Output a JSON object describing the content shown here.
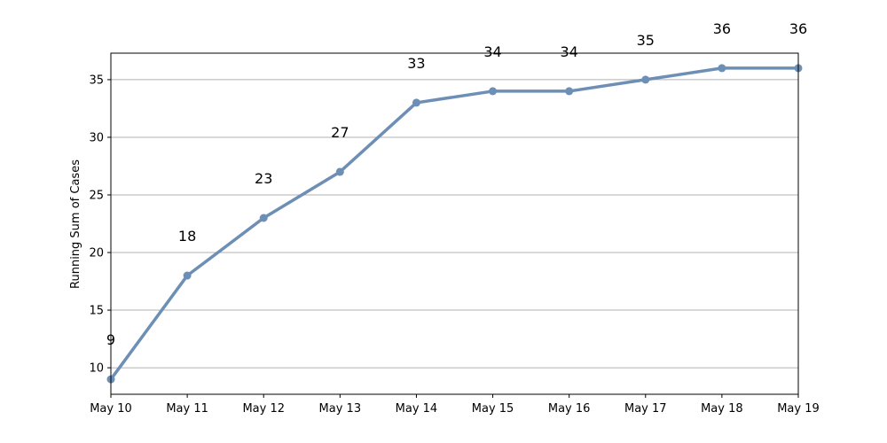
{
  "chart_data": {
    "type": "line",
    "title": "",
    "xlabel": "",
    "ylabel": "Running Sum of Cases",
    "categories": [
      "May 10",
      "May 11",
      "May 12",
      "May 13",
      "May 14",
      "May 15",
      "May 16",
      "May 17",
      "May 18",
      "May 19"
    ],
    "series": [
      {
        "values": [
          9,
          18,
          23,
          27,
          33,
          34,
          34,
          35,
          36,
          36
        ],
        "color": "#6d8fb6"
      }
    ],
    "data_labels": [
      "9",
      "18",
      "23",
      "27",
      "33",
      "34",
      "34",
      "35",
      "36",
      "36"
    ],
    "ylim": [
      7.7,
      37.3
    ],
    "yticks": [
      10,
      15,
      20,
      25,
      30,
      35
    ],
    "ytick_labels": [
      "10",
      "15",
      "20",
      "25",
      "30",
      "35"
    ],
    "grid": "horizontal",
    "legend": "none"
  }
}
